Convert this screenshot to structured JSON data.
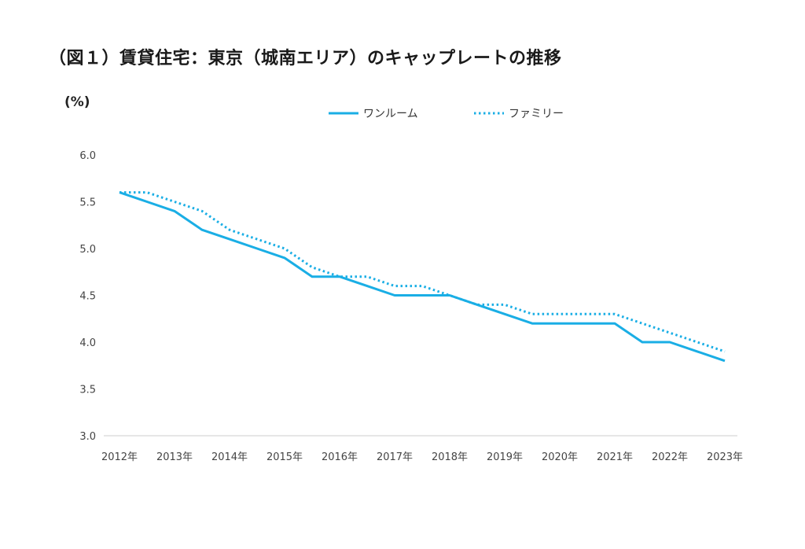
{
  "title": "（図１）賃貸住宅：東京（城南エリア）のキャップレートの推移",
  "unit_label": "(%)",
  "colors": {
    "line": "#1aaee5",
    "axis": "#cccccc"
  },
  "chart_data": {
    "type": "line",
    "title": "（図１）賃貸住宅：東京（城南エリア）のキャップレートの推移",
    "ylabel": "(%)",
    "ylim": [
      3.0,
      6.0
    ],
    "yticks": [
      "6.0",
      "5.5",
      "5.0",
      "4.5",
      "4.0",
      "3.5",
      "3.0"
    ],
    "xticks": [
      "2012年",
      "2013年",
      "2014年",
      "2015年",
      "2016年",
      "2017年",
      "2018年",
      "2019年",
      "2020年",
      "2021年",
      "2022年",
      "2023年"
    ],
    "grid": false,
    "legend_position": "top",
    "x": [
      2012.0,
      2012.5,
      2013.0,
      2013.5,
      2014.0,
      2014.5,
      2015.0,
      2015.5,
      2016.0,
      2016.5,
      2017.0,
      2017.5,
      2018.0,
      2018.5,
      2019.0,
      2019.5,
      2020.0,
      2020.5,
      2021.0,
      2021.5,
      2022.0,
      2022.5,
      2023.0
    ],
    "series": [
      {
        "name": "ワンルーム",
        "style": "solid",
        "values": [
          5.6,
          5.5,
          5.4,
          5.2,
          5.1,
          5.0,
          4.9,
          4.7,
          4.7,
          4.6,
          4.5,
          4.5,
          4.5,
          4.4,
          4.3,
          4.2,
          4.2,
          4.2,
          4.2,
          4.0,
          4.0,
          3.9,
          3.8
        ]
      },
      {
        "name": "ファミリー",
        "style": "dotted",
        "values": [
          5.6,
          5.6,
          5.5,
          5.4,
          5.2,
          5.1,
          5.0,
          4.8,
          4.7,
          4.7,
          4.6,
          4.6,
          4.5,
          4.4,
          4.4,
          4.3,
          4.3,
          4.3,
          4.3,
          4.2,
          4.1,
          4.0,
          3.9
        ]
      }
    ]
  }
}
